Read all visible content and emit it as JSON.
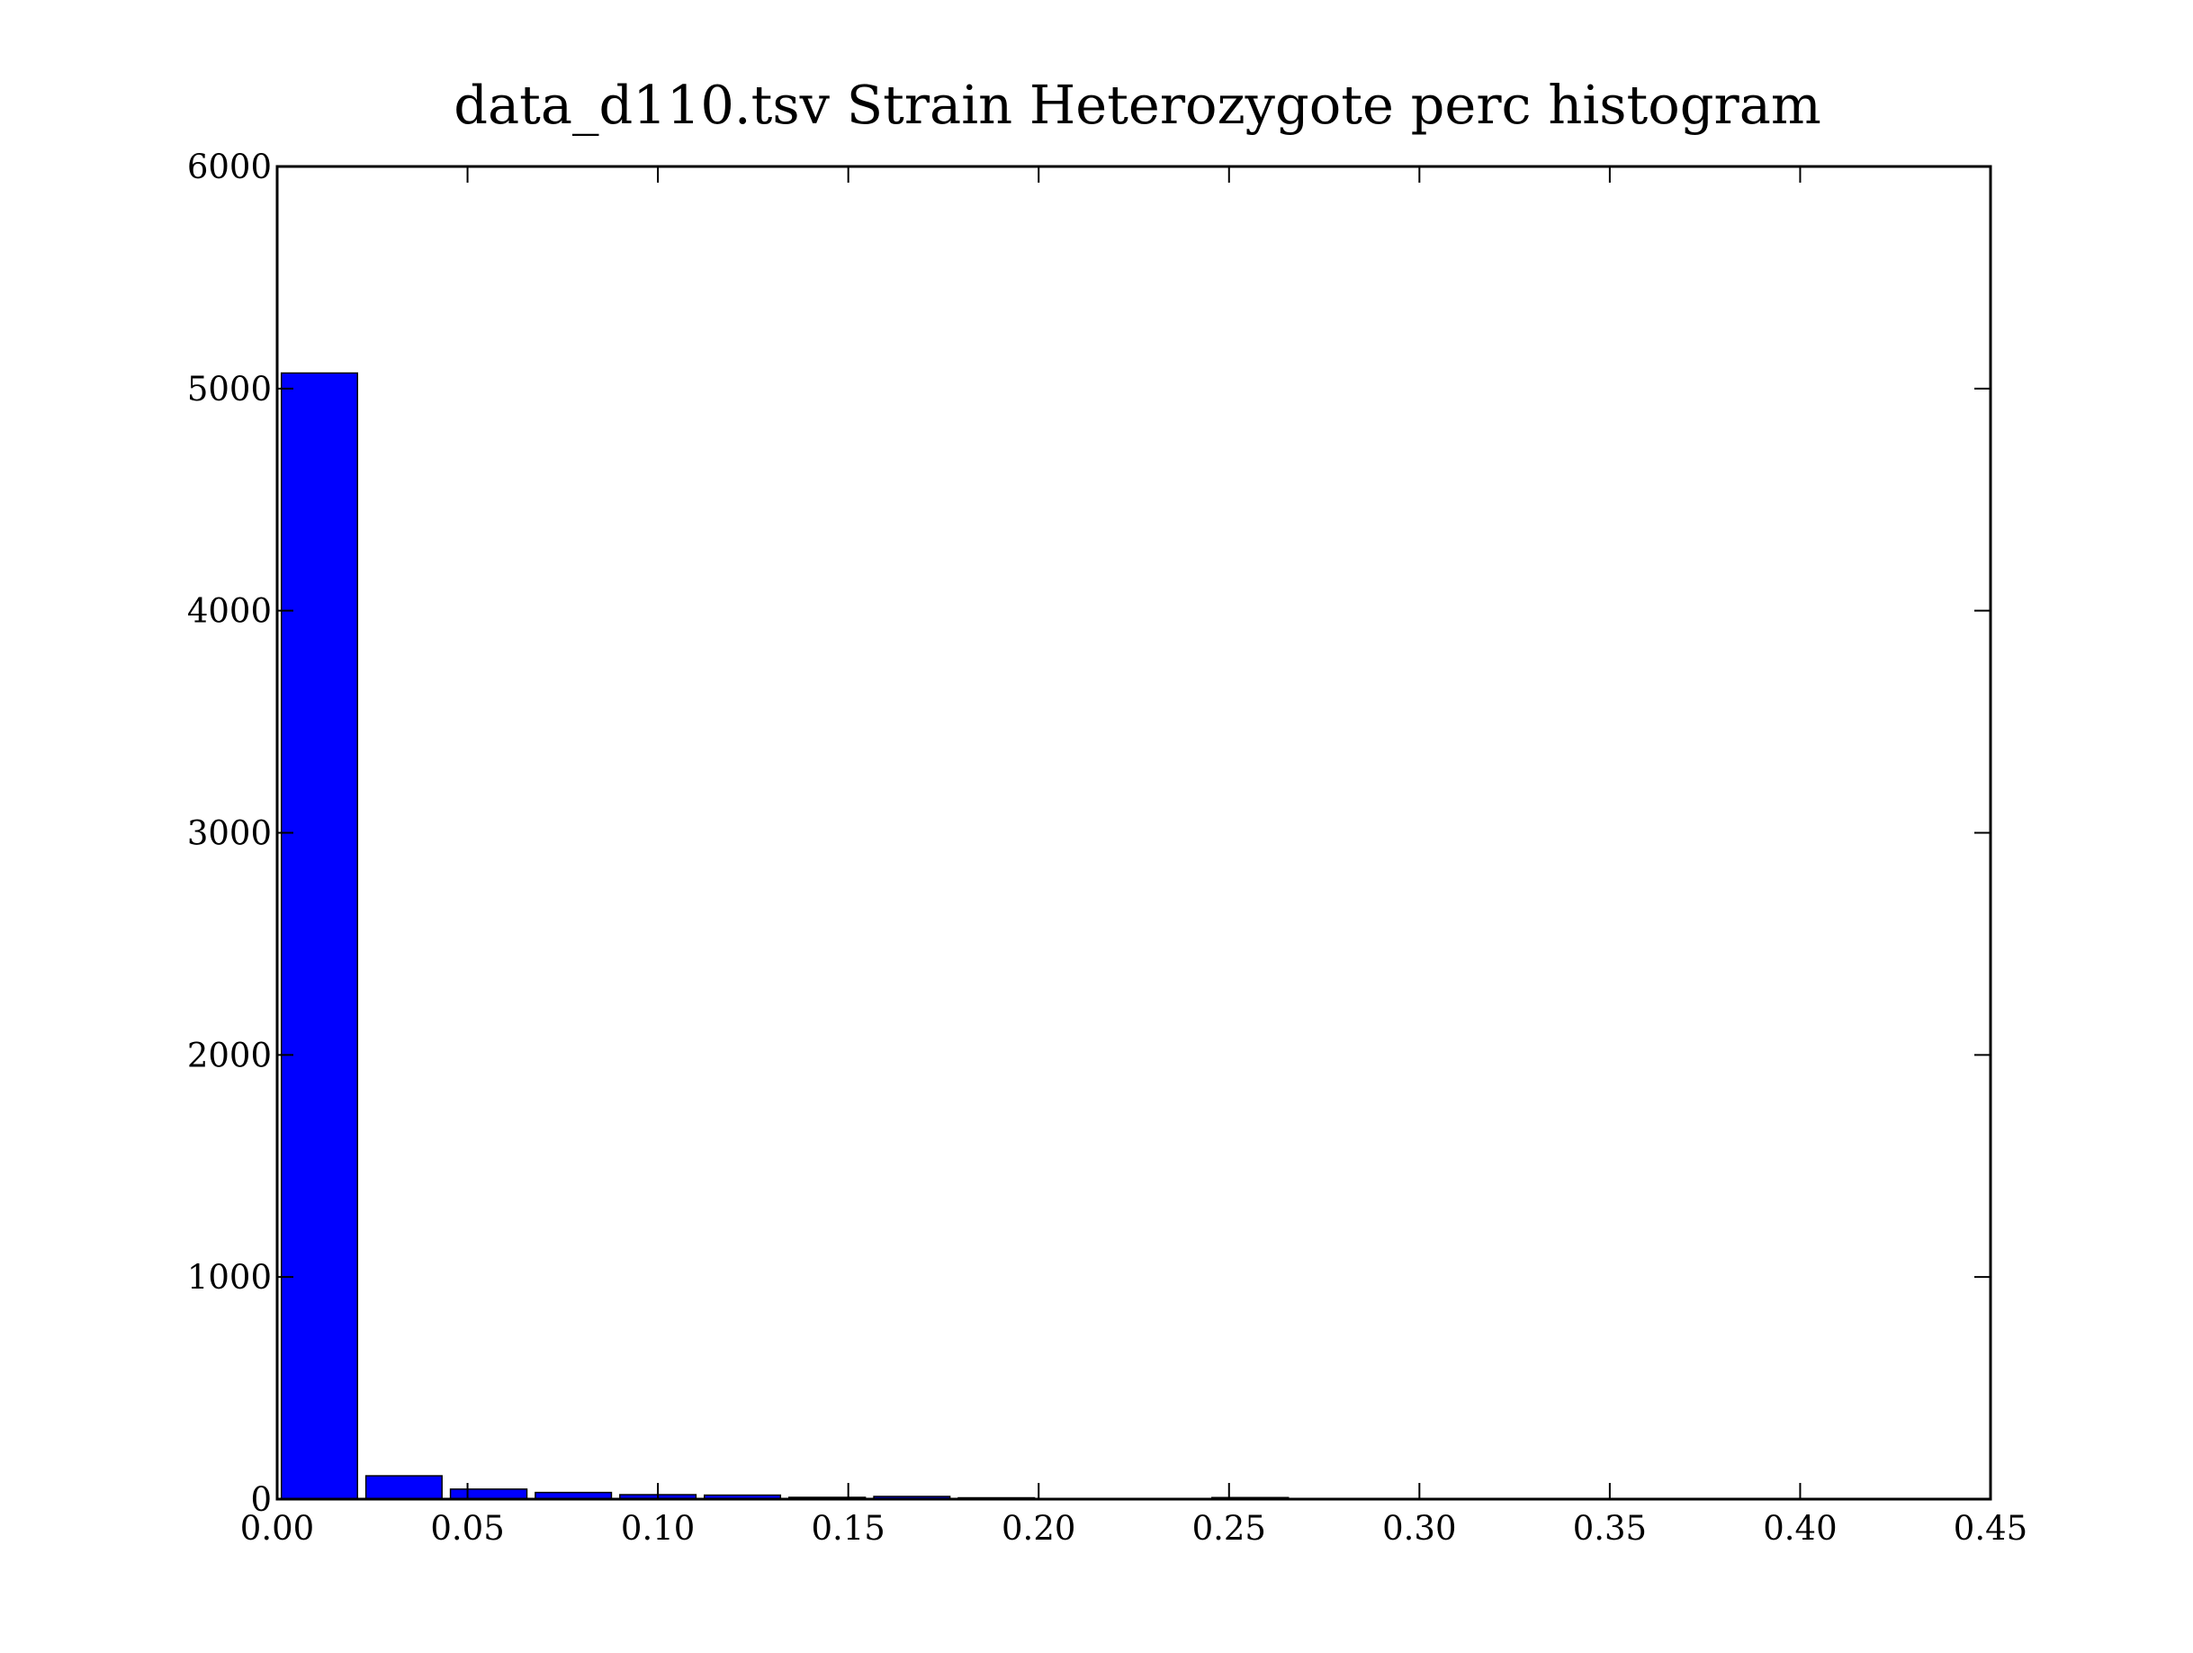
{
  "chart_data": {
    "type": "bar",
    "title": "data_d110.tsv Strain Heterozygote perc histogram",
    "xlabel": "",
    "ylabel": "",
    "xlim": [
      0.0,
      0.45
    ],
    "ylim": [
      0,
      6000
    ],
    "x_ticks": [
      "0.00",
      "0.05",
      "0.10",
      "0.15",
      "0.20",
      "0.25",
      "0.30",
      "0.35",
      "0.40",
      "0.45"
    ],
    "y_ticks": [
      "0",
      "1000",
      "2000",
      "3000",
      "4000",
      "5000",
      "6000"
    ],
    "bins": [
      {
        "x0": 0.0,
        "x1": 0.0222,
        "count": 5070
      },
      {
        "x0": 0.0222,
        "x1": 0.0444,
        "count": 105
      },
      {
        "x0": 0.0444,
        "x1": 0.0667,
        "count": 45
      },
      {
        "x0": 0.0667,
        "x1": 0.0889,
        "count": 30
      },
      {
        "x0": 0.0889,
        "x1": 0.1111,
        "count": 20
      },
      {
        "x0": 0.1111,
        "x1": 0.1333,
        "count": 18
      },
      {
        "x0": 0.1333,
        "x1": 0.1556,
        "count": 8
      },
      {
        "x0": 0.1556,
        "x1": 0.1778,
        "count": 12
      },
      {
        "x0": 0.1778,
        "x1": 0.2,
        "count": 6
      },
      {
        "x0": 0.2,
        "x1": 0.2222,
        "count": 3
      },
      {
        "x0": 0.2222,
        "x1": 0.2444,
        "count": 2
      },
      {
        "x0": 0.2444,
        "x1": 0.2667,
        "count": 7
      },
      {
        "x0": 0.2667,
        "x1": 0.2889,
        "count": 2
      },
      {
        "x0": 0.2889,
        "x1": 0.3111,
        "count": 1
      },
      {
        "x0": 0.3111,
        "x1": 0.3333,
        "count": 1
      },
      {
        "x0": 0.3333,
        "x1": 0.3556,
        "count": 3
      },
      {
        "x0": 0.3556,
        "x1": 0.3778,
        "count": 2
      },
      {
        "x0": 0.3778,
        "x1": 0.4,
        "count": 1
      },
      {
        "x0": 0.4,
        "x1": 0.4222,
        "count": 2
      },
      {
        "x0": 0.4222,
        "x1": 0.4444,
        "count": 2
      }
    ],
    "grid": false,
    "bar_color": "#0000ff",
    "edge_color": "#000000"
  }
}
